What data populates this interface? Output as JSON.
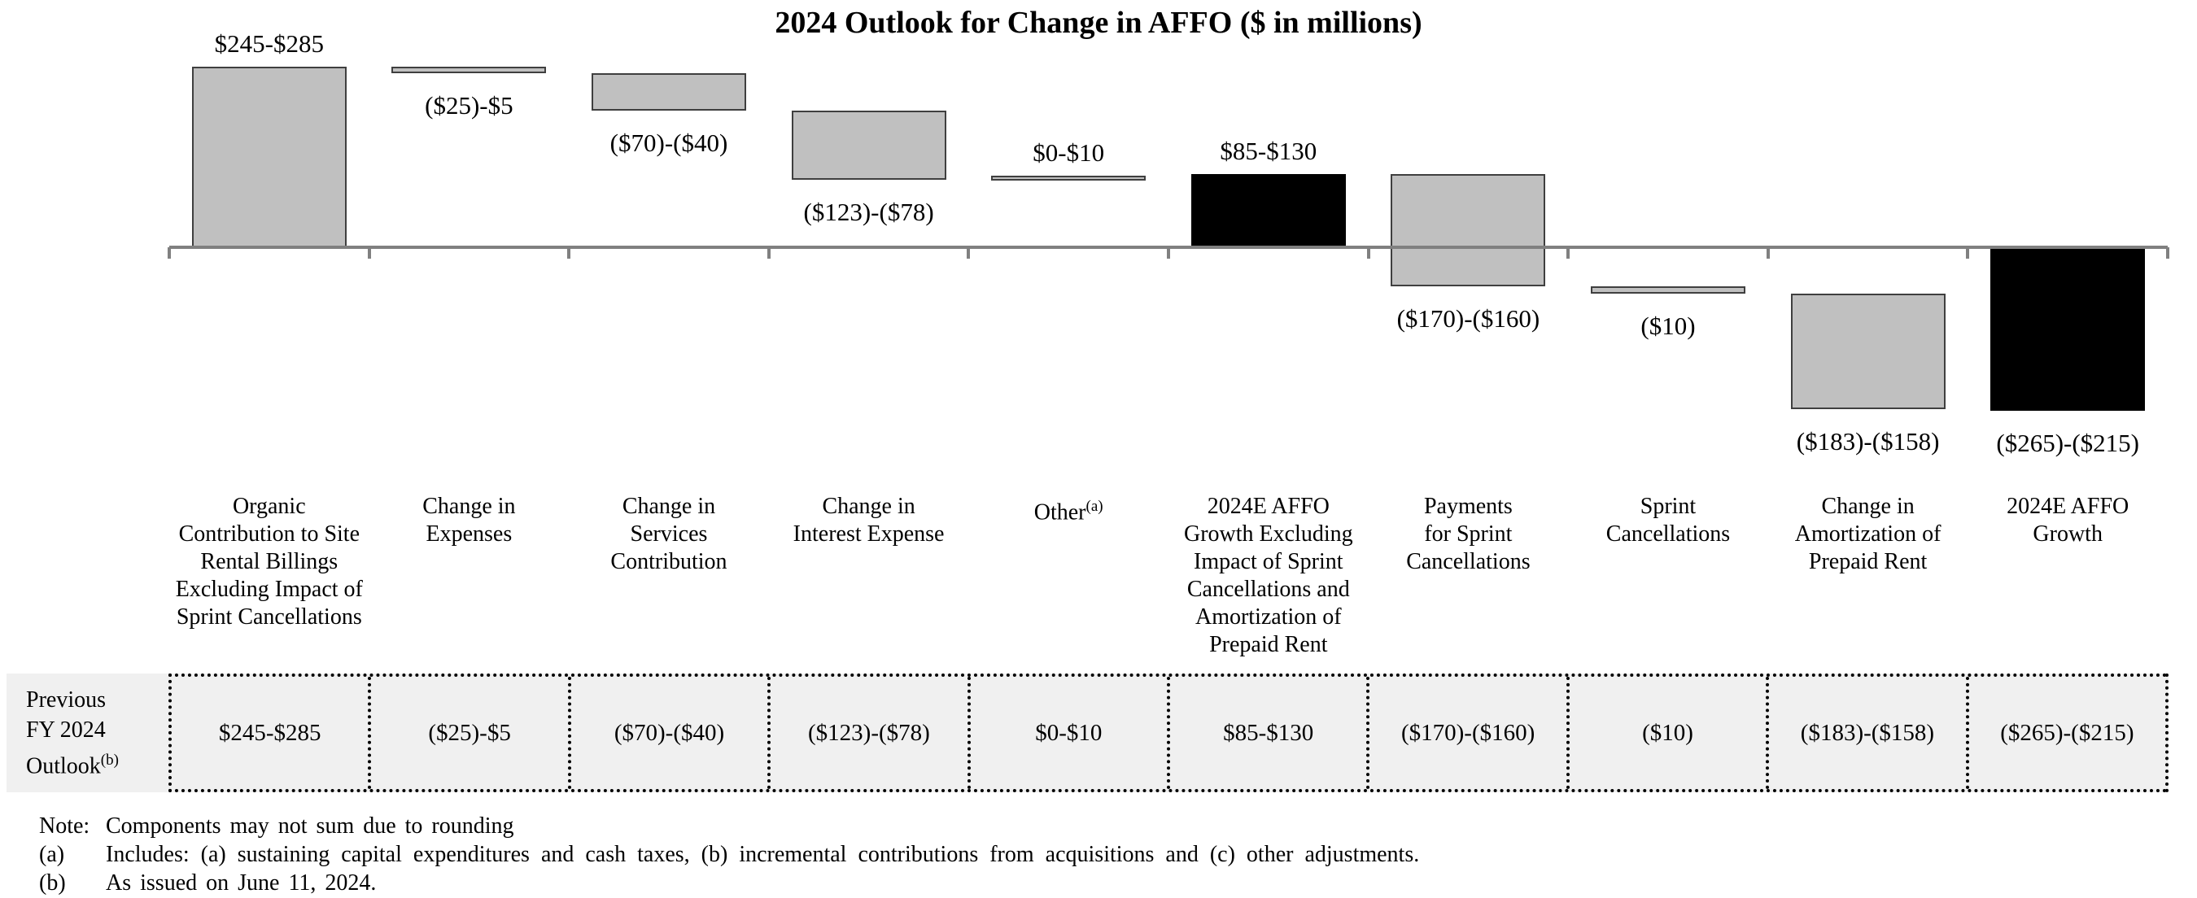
{
  "title": "2024 Outlook for Change in AFFO ($ in millions)",
  "colors": {
    "bar_gray_fill": "#c0c0c0",
    "bar_gray_border": "#3f3f3f",
    "bar_black": "#000000",
    "axis_gray": "#808080",
    "table_background": "#f0f0f0",
    "table_border": "#000000"
  },
  "chart_data": {
    "type": "bar",
    "subtype": "waterfall",
    "title": "2024 Outlook for Change in AFFO ($ in millions)",
    "unit": "$ in millions",
    "baseline_value": 0,
    "y_axis_shown": false,
    "gridlines": false,
    "bars": [
      {
        "category_lines": [
          "Organic",
          "Contribution to Site",
          "Rental Billings",
          "Excluding Impact of",
          "Sprint Cancellations"
        ],
        "superscript": "",
        "value_label": "$245-$285",
        "range_low": 245,
        "range_high": 285,
        "cumulative_start": 0,
        "cumulative_end": 265,
        "color": "gray",
        "role": "increase",
        "label_position": "above"
      },
      {
        "category_lines": [
          "Change in",
          "Expenses"
        ],
        "superscript": "",
        "value_label": "($25)-$5",
        "range_low": -25,
        "range_high": 5,
        "cumulative_start": 265,
        "cumulative_end": 255,
        "color": "gray",
        "role": "decrease",
        "label_position": "below"
      },
      {
        "category_lines": [
          "Change in",
          "Services",
          "Contribution"
        ],
        "superscript": "",
        "value_label": "($70)-($40)",
        "range_low": -70,
        "range_high": -40,
        "cumulative_start": 255,
        "cumulative_end": 200,
        "color": "gray",
        "role": "decrease",
        "label_position": "below"
      },
      {
        "category_lines": [
          "Change in",
          "Interest Expense"
        ],
        "superscript": "",
        "value_label": "($123)-($78)",
        "range_low": -123,
        "range_high": -78,
        "cumulative_start": 200,
        "cumulative_end": 99.5,
        "color": "gray",
        "role": "decrease",
        "label_position": "below"
      },
      {
        "category_lines": [
          "Other"
        ],
        "superscript": "(a)",
        "value_label": "$0-$10",
        "range_low": 0,
        "range_high": 10,
        "cumulative_start": 99.5,
        "cumulative_end": 104.5,
        "color": "gray",
        "role": "increase",
        "label_position": "above"
      },
      {
        "category_lines": [
          "2024E AFFO",
          "Growth Excluding",
          "Impact of Sprint",
          "Cancellations and",
          "Amortization of",
          "Prepaid Rent"
        ],
        "superscript": "",
        "value_label": "$85-$130",
        "range_low": 85,
        "range_high": 130,
        "cumulative_start": 0,
        "cumulative_end": 107.5,
        "color": "black",
        "role": "subtotal",
        "label_position": "above"
      },
      {
        "category_lines": [
          "Payments",
          "for Sprint",
          "Cancellations"
        ],
        "superscript": "",
        "value_label": "($170)-($160)",
        "range_low": -170,
        "range_high": -160,
        "cumulative_start": 107.5,
        "cumulative_end": -57.5,
        "color": "gray",
        "role": "decrease",
        "label_position": "below"
      },
      {
        "category_lines": [
          "Sprint",
          "Cancellations"
        ],
        "superscript": "",
        "value_label": "($10)",
        "range_low": -10,
        "range_high": -10,
        "cumulative_start": -57.5,
        "cumulative_end": -67.5,
        "color": "gray",
        "role": "decrease",
        "label_position": "below"
      },
      {
        "category_lines": [
          "Change in",
          "Amortization of",
          "Prepaid Rent"
        ],
        "superscript": "",
        "value_label": "($183)-($158)",
        "range_low": -183,
        "range_high": -158,
        "cumulative_start": -67.5,
        "cumulative_end": -238,
        "color": "gray",
        "role": "decrease",
        "label_position": "below"
      },
      {
        "category_lines": [
          "2024E AFFO",
          "Growth"
        ],
        "superscript": "",
        "value_label": "($265)-($215)",
        "range_low": -265,
        "range_high": -215,
        "cumulative_start": 0,
        "cumulative_end": -240,
        "color": "black",
        "role": "total",
        "label_position": "below"
      }
    ]
  },
  "table": {
    "row_header_lines": [
      "Previous",
      "FY 2024",
      "Outlook"
    ],
    "row_header_superscript": "(b)",
    "cells": [
      "$245-$285",
      "($25)-$5",
      "($70)-($40)",
      "($123)-($78)",
      "$0-$10",
      "$85-$130",
      "($170)-($160)",
      "($10)",
      "($183)-($158)",
      "($265)-($215)"
    ]
  },
  "notes": [
    {
      "label": "Note:",
      "text": "Components may not sum due to rounding"
    },
    {
      "label": "(a)",
      "text": "Includes: (a) sustaining capital expenditures and cash taxes, (b) incremental contributions from acquisitions and (c) other adjustments."
    },
    {
      "label": "(b)",
      "text": "As issued on June 11, 2024."
    }
  ]
}
